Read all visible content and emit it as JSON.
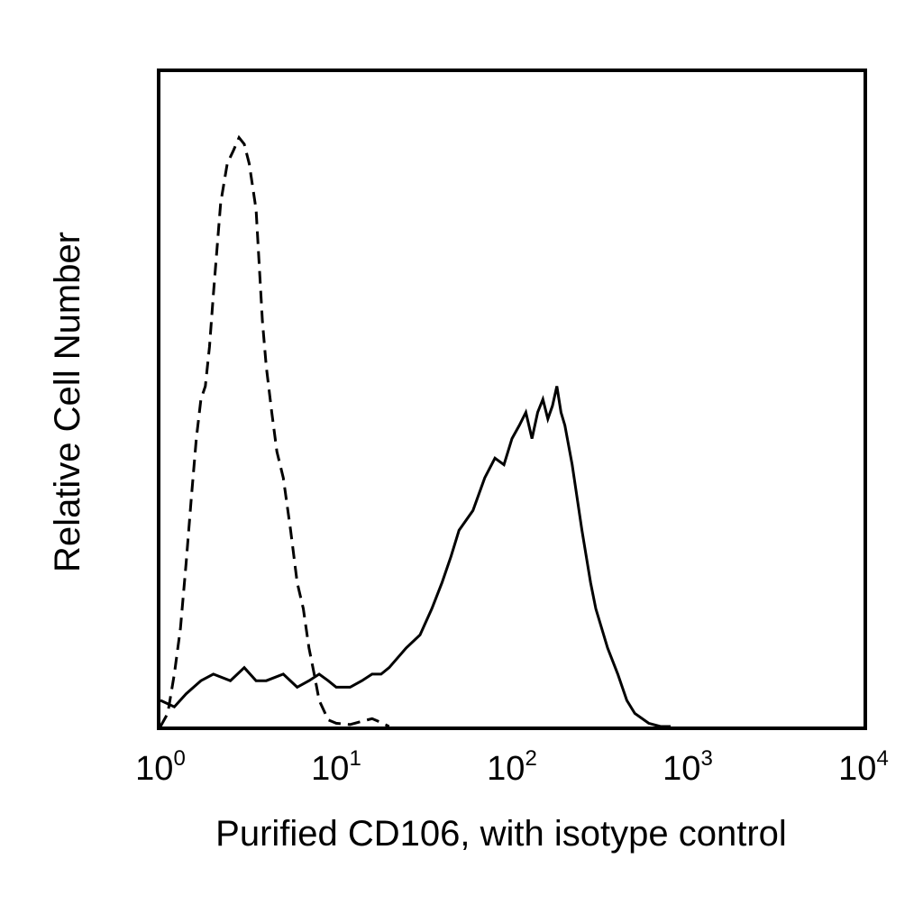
{
  "chart_data": {
    "type": "line",
    "title": "",
    "xlabel": "Purified CD106, with isotype control",
    "ylabel": "Relative Cell Number",
    "xscale": "log",
    "xlim": [
      1,
      10000
    ],
    "ylim": [
      0,
      100
    ],
    "grid": false,
    "legend": "none",
    "x_ticks": [
      {
        "value": 1,
        "base": "10",
        "exp": "0"
      },
      {
        "value": 10,
        "base": "10",
        "exp": "1"
      },
      {
        "value": 100,
        "base": "10",
        "exp": "2"
      },
      {
        "value": 1000,
        "base": "10",
        "exp": "3"
      },
      {
        "value": 10000,
        "base": "10",
        "exp": "4"
      }
    ],
    "series": [
      {
        "line_style": "dashed",
        "color": "#000000",
        "x": [
          1.0,
          1.1,
          1.2,
          1.3,
          1.4,
          1.5,
          1.6,
          1.7,
          1.8,
          1.9,
          2.0,
          2.2,
          2.4,
          2.6,
          2.8,
          3.0,
          3.2,
          3.5,
          3.8,
          4.0,
          4.3,
          4.6,
          5.0,
          5.5,
          6.0,
          6.5,
          7.0,
          7.5,
          8.0,
          9.0,
          10.0,
          12.0,
          14.0,
          16.0,
          18.0,
          20.0
        ],
        "y": [
          0,
          2,
          8,
          15,
          25,
          35,
          44,
          50,
          52,
          58,
          66,
          80,
          86,
          88,
          90,
          89,
          86,
          79,
          62,
          55,
          48,
          42,
          38,
          30,
          22,
          18,
          12,
          8,
          4,
          1,
          0.5,
          0.3,
          0.8,
          1.2,
          0.6,
          0
        ]
      },
      {
        "line_style": "solid",
        "color": "#000000",
        "x": [
          1.0,
          1.2,
          1.4,
          1.7,
          2.0,
          2.5,
          3.0,
          3.5,
          4.0,
          5.0,
          6.0,
          7.0,
          8.0,
          9.0,
          10.0,
          12.0,
          14.0,
          16.0,
          18.0,
          20.0,
          25.0,
          30.0,
          35.0,
          40.0,
          45.0,
          50.0,
          60.0,
          70.0,
          80.0,
          90.0,
          100.0,
          110.0,
          120.0,
          130.0,
          140.0,
          150.0,
          160.0,
          170.0,
          180.0,
          190.0,
          200.0,
          220.0,
          250.0,
          280.0,
          300.0,
          350.0,
          400.0,
          450.0,
          500.0,
          600.0,
          700.0,
          800.0
        ],
        "y": [
          4,
          3,
          5,
          7,
          8,
          7,
          9,
          7,
          7,
          8,
          6,
          7,
          8,
          7,
          6,
          6,
          7,
          8,
          8,
          9,
          12,
          14,
          18,
          22,
          26,
          30,
          33,
          38,
          41,
          40,
          44,
          46,
          48,
          44,
          48,
          50,
          47,
          49,
          52,
          48,
          46,
          40,
          30,
          22,
          18,
          12,
          8,
          4,
          2,
          0.5,
          0,
          0
        ]
      }
    ]
  }
}
